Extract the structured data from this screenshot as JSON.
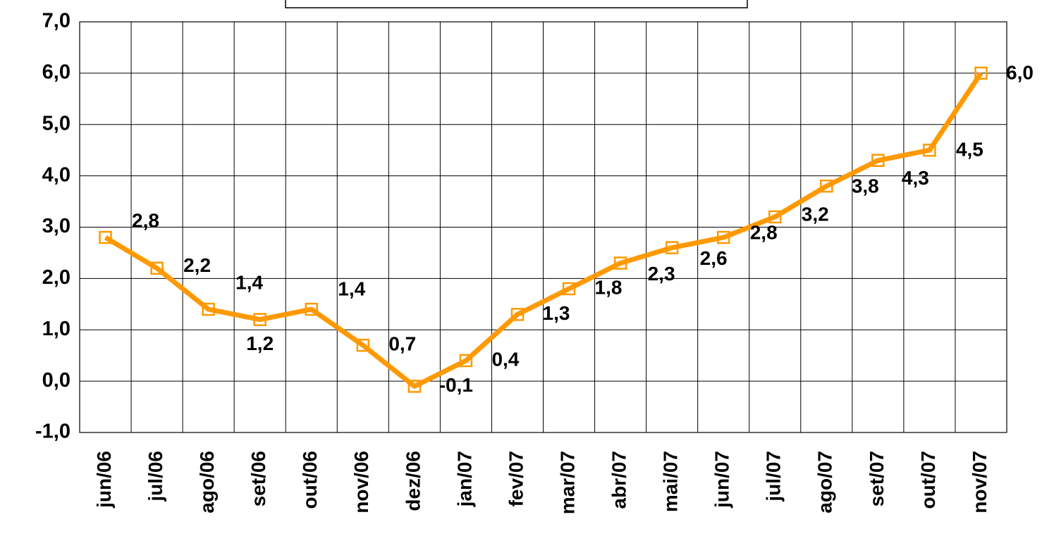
{
  "chart_data": {
    "type": "line",
    "categories": [
      "jun/06",
      "jul/06",
      "ago/06",
      "set/06",
      "out/06",
      "nov/06",
      "dez/06",
      "jan/07",
      "fev/07",
      "mar/07",
      "abr/07",
      "mai/07",
      "jun/07",
      "jul/07",
      "ago/07",
      "set/07",
      "out/07",
      "nov/07"
    ],
    "values": [
      2.8,
      2.2,
      1.4,
      1.2,
      1.4,
      0.7,
      -0.1,
      0.4,
      1.3,
      1.8,
      2.3,
      2.6,
      2.8,
      3.2,
      3.8,
      4.3,
      4.5,
      6.0
    ],
    "value_labels": [
      "2,8",
      "2,2",
      "1,4",
      "1,2",
      "1,4",
      "0,7",
      "-0,1",
      "0,4",
      "1,3",
      "1,8",
      "2,3",
      "2,6",
      "2,8",
      "3,2",
      "3,8",
      "4,3",
      "4,5",
      "6,0"
    ],
    "color": "#ff9900",
    "ylim": [
      -1,
      7
    ],
    "yticks": [
      {
        "value": -1,
        "label": "-1,0"
      },
      {
        "value": 0,
        "label": "0,0"
      },
      {
        "value": 1,
        "label": "1,0"
      },
      {
        "value": 2,
        "label": "2,0"
      },
      {
        "value": 3,
        "label": "3,0"
      },
      {
        "value": 4,
        "label": "4,0"
      },
      {
        "value": 5,
        "label": "5,0"
      },
      {
        "value": 6,
        "label": "6,0"
      },
      {
        "value": 7,
        "label": "7,0"
      }
    ],
    "grid": true
  }
}
